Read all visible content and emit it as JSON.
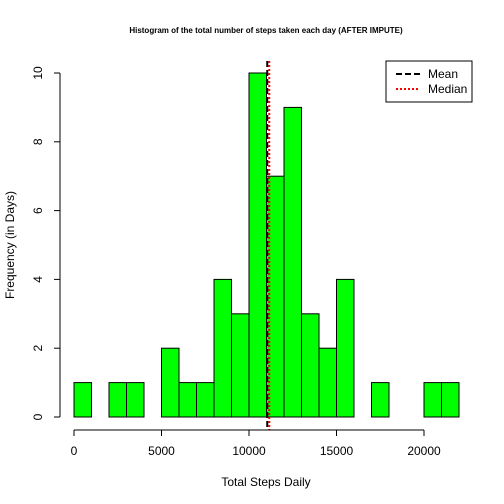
{
  "chart_data": {
    "type": "bar",
    "title": "Histogram of the total number of steps taken each day (AFTER IMPUTE)",
    "xlabel": "Total Steps Daily",
    "ylabel": "Frequency (in Days)",
    "bin_edges": [
      0,
      1000,
      2000,
      3000,
      4000,
      5000,
      6000,
      7000,
      8000,
      9000,
      10000,
      11000,
      12000,
      13000,
      14000,
      15000,
      16000,
      17000,
      18000,
      19000,
      20000,
      21000,
      22000
    ],
    "values": [
      1,
      0,
      1,
      1,
      0,
      2,
      1,
      1,
      4,
      3,
      10,
      7,
      9,
      3,
      2,
      4,
      0,
      1,
      0,
      0,
      1,
      1
    ],
    "xlim": [
      0,
      22000
    ],
    "ylim": [
      0,
      10
    ],
    "x_ticks": [
      0,
      5000,
      10000,
      15000,
      20000
    ],
    "y_ticks": [
      0,
      2,
      4,
      6,
      8,
      10
    ],
    "bar_color": "#00FF00",
    "mean": 11100,
    "median": 11100,
    "mean_color": "#000000",
    "median_color": "#FF0000",
    "legend": {
      "position": "top-right",
      "entries": [
        {
          "label": "Mean",
          "color": "#000000",
          "style": "dashed"
        },
        {
          "label": "Median",
          "color": "#FF0000",
          "style": "dotted"
        }
      ]
    },
    "grid": false
  }
}
